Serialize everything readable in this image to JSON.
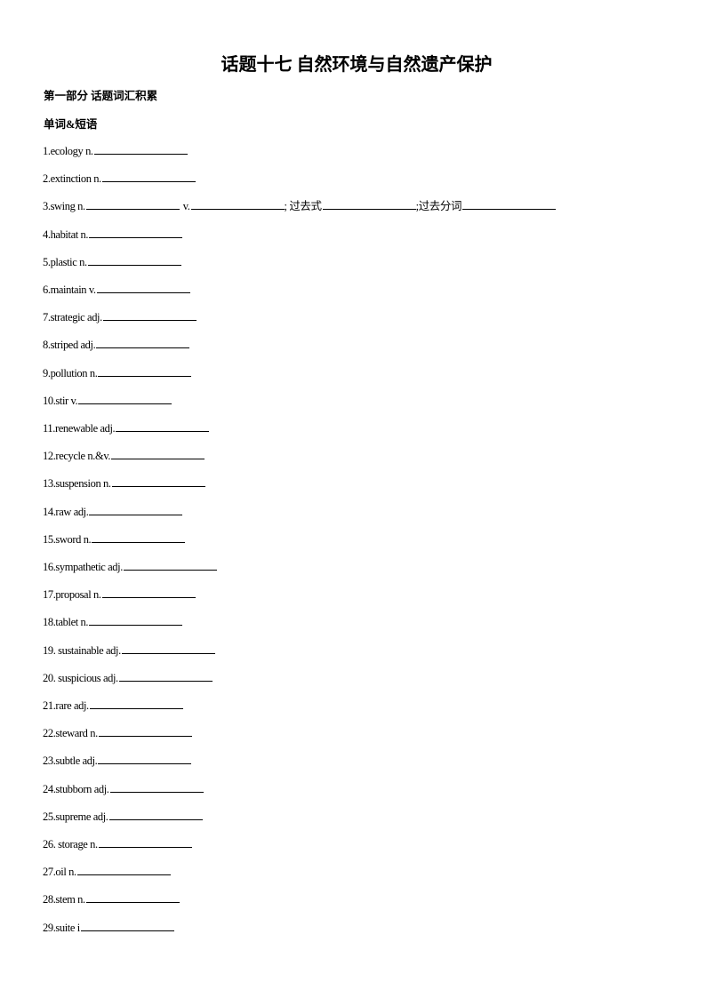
{
  "title": "话题十七  自然环境与自然遗产保护",
  "section": "第一部分  话题词汇积累",
  "subsection": "单词&短语",
  "items": [
    {
      "label": "1.ecology n."
    },
    {
      "label": "2.extinction n."
    },
    {
      "label": "3.swing n.",
      "v_label": "v.",
      "past_label": "; 过去式",
      "pp_label": ";过去分词"
    },
    {
      "label": "4.habitat n."
    },
    {
      "label": "5.plastic n."
    },
    {
      "label": "6.maintain v."
    },
    {
      "label": "7.strategic adj."
    },
    {
      "label": "8.striped adj."
    },
    {
      "label": "9.pollution  n."
    },
    {
      "label": "10.stir v."
    },
    {
      "label": "11.renewable adj."
    },
    {
      "label": "12.recycle n.&v."
    },
    {
      "label": "13.suspension n."
    },
    {
      "label": "14.raw adj."
    },
    {
      "label": "15.sword n."
    },
    {
      "label": "16.sympathetic adj."
    },
    {
      "label": "17.proposal n."
    },
    {
      "label": "18.tablet n."
    },
    {
      "label": "19. sustainable adj."
    },
    {
      "label": "20. suspicious adj."
    },
    {
      "label": "21.rare adj."
    },
    {
      "label": "22.steward n."
    },
    {
      "label": "23.subtle adj."
    },
    {
      "label": "24.stubborn adj."
    },
    {
      "label": "25.supreme adj."
    },
    {
      "label": "26.  storage n."
    },
    {
      "label": "27.oil  n."
    },
    {
      "label": "28.stem n."
    },
    {
      "label": "29.suite i"
    }
  ]
}
